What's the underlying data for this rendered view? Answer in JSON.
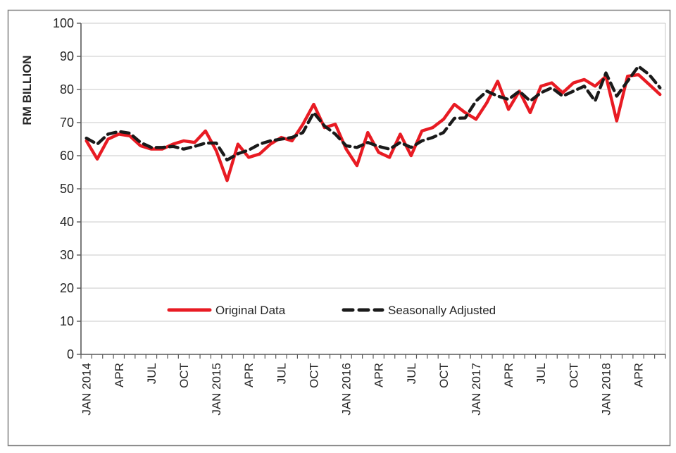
{
  "chart": {
    "y_axis_title": "RM BILLION",
    "legend": {
      "items": [
        {
          "label": "Original Data",
          "color": "#e81b23",
          "style": "solid"
        },
        {
          "label": "Seasonally Adjusted",
          "color": "#1a1a1a",
          "style": "dashed"
        }
      ],
      "position": "inside-bottom"
    },
    "colors": {
      "original": "#e81b23",
      "seasonally_adjusted": "#1a1a1a",
      "gridline": "#c9c9c9",
      "axis": "#595959",
      "text": "#262626",
      "frame_border": "#808080"
    }
  },
  "chart_data": {
    "type": "line",
    "title": "",
    "xlabel": "",
    "ylabel": "RM BILLION",
    "ylim": [
      0,
      100
    ],
    "y_ticks": [
      0,
      10,
      20,
      30,
      40,
      50,
      60,
      70,
      80,
      90,
      100
    ],
    "grid": true,
    "legend_position": "inside-bottom",
    "categories": [
      "JAN 2014",
      "FEB 2014",
      "MAR 2014",
      "APR 2014",
      "MAY 2014",
      "JUN 2014",
      "JUL 2014",
      "AUG 2014",
      "SEP 2014",
      "OCT 2014",
      "NOV 2014",
      "DEC 2014",
      "JAN 2015",
      "FEB 2015",
      "MAR 2015",
      "APR 2015",
      "MAY 2015",
      "JUN 2015",
      "JUL 2015",
      "AUG 2015",
      "SEP 2015",
      "OCT 2015",
      "NOV 2015",
      "DEC 2015",
      "JAN 2016",
      "FEB 2016",
      "MAR 2016",
      "APR 2016",
      "MAY 2016",
      "JUN 2016",
      "JUL 2016",
      "AUG 2016",
      "SEP 2016",
      "OCT 2016",
      "NOV 2016",
      "DEC 2016",
      "JAN 2017",
      "FEB 2017",
      "MAR 2017",
      "APR 2017",
      "MAY 2017",
      "JUN 2017",
      "JUL 2017",
      "AUG 2017",
      "SEP 2017",
      "OCT 2017",
      "NOV 2017",
      "DEC 2017",
      "JAN 2018",
      "FEB 2018",
      "MAR 2018",
      "APR 2018",
      "MAY 2018",
      "JUN 2018"
    ],
    "x_tick_labels": [
      {
        "index": 0,
        "label": "JAN 2014"
      },
      {
        "index": 3,
        "label": "APR"
      },
      {
        "index": 6,
        "label": "JUL"
      },
      {
        "index": 9,
        "label": "OCT"
      },
      {
        "index": 12,
        "label": "JAN 2015"
      },
      {
        "index": 15,
        "label": "APR"
      },
      {
        "index": 18,
        "label": "JUL"
      },
      {
        "index": 21,
        "label": "OCT"
      },
      {
        "index": 24,
        "label": "JAN 2016"
      },
      {
        "index": 27,
        "label": "APR"
      },
      {
        "index": 30,
        "label": "JUL"
      },
      {
        "index": 33,
        "label": "OCT"
      },
      {
        "index": 36,
        "label": "JAN 2017"
      },
      {
        "index": 39,
        "label": "APR"
      },
      {
        "index": 42,
        "label": "JUL"
      },
      {
        "index": 45,
        "label": "OCT"
      },
      {
        "index": 48,
        "label": "JAN 2018"
      },
      {
        "index": 51,
        "label": "APR"
      }
    ],
    "series": [
      {
        "name": "Original Data",
        "color": "#e81b23",
        "dash": "solid",
        "values": [
          64.5,
          59,
          65,
          66.5,
          66,
          63,
          62,
          62,
          63.5,
          64.5,
          64,
          67.5,
          61.5,
          52.5,
          63.5,
          59.5,
          60.5,
          63.5,
          65.5,
          64.5,
          69.5,
          75.5,
          68.5,
          69.5,
          62,
          57,
          67,
          61,
          59.5,
          66.5,
          60,
          67.5,
          68.5,
          71,
          75.5,
          73,
          71,
          76,
          82.5,
          74,
          79.5,
          73,
          81,
          82,
          79,
          82,
          83,
          81,
          84,
          70.5,
          84,
          84.5,
          81.5,
          78.5
        ]
      },
      {
        "name": "Seasonally Adjusted",
        "color": "#1a1a1a",
        "dash": "dashed",
        "values": [
          65.3,
          63.5,
          66.5,
          67.3,
          66.8,
          64,
          62.5,
          62.5,
          62.8,
          62,
          62.8,
          63.8,
          63.8,
          58.7,
          60.6,
          61.7,
          63.5,
          64.5,
          65,
          65.5,
          67,
          73,
          69,
          66.5,
          63,
          62.5,
          64,
          62.8,
          62,
          64,
          62.5,
          64.5,
          65.5,
          67,
          71.3,
          71.4,
          76.5,
          79.5,
          78,
          77,
          79.5,
          76.5,
          79,
          80.5,
          78,
          79.5,
          81,
          76.5,
          85,
          78,
          82.5,
          87,
          84.5,
          80.5
        ]
      }
    ]
  }
}
